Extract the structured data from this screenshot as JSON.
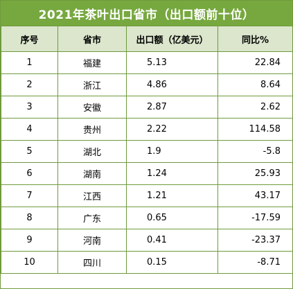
{
  "title": "2021年茶叶出口省市（出口额前十位）",
  "columns": [
    "序号",
    "省市",
    "出口额（亿美元）",
    "同比%"
  ],
  "rows": [
    {
      "rank": "1",
      "province": "福建",
      "export": "5.13",
      "yoy": "22.84"
    },
    {
      "rank": "2",
      "province": "浙江",
      "export": "4.86",
      "yoy": "8.64"
    },
    {
      "rank": "3",
      "province": "安徽",
      "export": "2.87",
      "yoy": "2.62"
    },
    {
      "rank": "4",
      "province": "贵州",
      "export": "2.22",
      "yoy": "114.58"
    },
    {
      "rank": "5",
      "province": "湖北",
      "export": "1.9",
      "yoy": "-5.8"
    },
    {
      "rank": "6",
      "province": "湖南",
      "export": "1.24",
      "yoy": "25.93"
    },
    {
      "rank": "7",
      "province": "江西",
      "export": "1.21",
      "yoy": "43.17"
    },
    {
      "rank": "8",
      "province": "广东",
      "export": "0.65",
      "yoy": "-17.59"
    },
    {
      "rank": "9",
      "province": "河南",
      "export": "0.41",
      "yoy": "-23.37"
    },
    {
      "rank": "10",
      "province": "四川",
      "export": "0.15",
      "yoy": "-8.71"
    }
  ],
  "colors": {
    "title_bg": "#77a83f",
    "header_bg": "#dbe6cc",
    "border": "#6f9a3c"
  }
}
